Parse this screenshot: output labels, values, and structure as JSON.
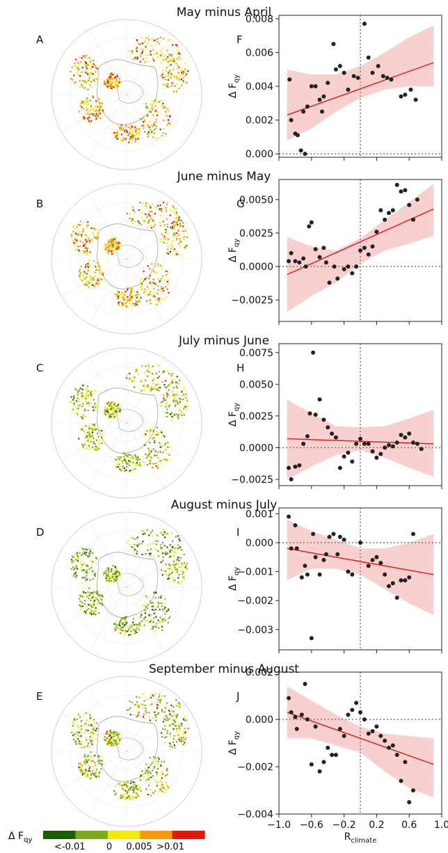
{
  "legend": {
    "label": "Δ F",
    "label_sub": "qy",
    "colors": [
      "#1b5e06",
      "#7aab1c",
      "#f5e80d",
      "#f59a0b",
      "#e3160b"
    ],
    "tick_labels": [
      "<-0.01",
      "0",
      "0.005",
      ">0.01"
    ]
  },
  "chart_data": [
    {
      "type": "scatter",
      "title": "May minus April",
      "map_label": "A",
      "panel_label": "F",
      "ylabel": "Δ F",
      "ylabel_sub": "qy",
      "xlim": [
        -1.0,
        1.0
      ],
      "ylim": [
        -0.0002,
        0.0082
      ],
      "yticks": [
        0.0,
        0.002,
        0.004,
        0.006,
        0.008
      ],
      "ytick_labels": [
        "0.000",
        "0.002",
        "0.004",
        "0.006",
        "0.008"
      ],
      "points": [
        [
          -0.87,
          0.0044
        ],
        [
          -0.85,
          0.002
        ],
        [
          -0.8,
          0.0012
        ],
        [
          -0.77,
          0.0011
        ],
        [
          -0.73,
          0.0002
        ],
        [
          -0.68,
          0.0
        ],
        [
          -0.7,
          0.0025
        ],
        [
          -0.65,
          0.0028
        ],
        [
          -0.6,
          0.004
        ],
        [
          -0.55,
          0.004
        ],
        [
          -0.5,
          0.0032
        ],
        [
          -0.47,
          0.0025
        ],
        [
          -0.45,
          0.0034
        ],
        [
          -0.4,
          0.0042
        ],
        [
          -0.33,
          0.0065
        ],
        [
          -0.3,
          0.005
        ],
        [
          -0.25,
          0.0052
        ],
        [
          -0.2,
          0.0048
        ],
        [
          -0.15,
          0.0038
        ],
        [
          -0.08,
          0.0046
        ],
        [
          -0.03,
          0.0045
        ],
        [
          0.05,
          0.0077
        ],
        [
          0.1,
          0.0057
        ],
        [
          0.15,
          0.0048
        ],
        [
          0.22,
          0.0052
        ],
        [
          0.28,
          0.0046
        ],
        [
          0.33,
          0.0045
        ],
        [
          0.38,
          0.0044
        ],
        [
          0.5,
          0.0034
        ],
        [
          0.55,
          0.0035
        ],
        [
          0.62,
          0.0038
        ],
        [
          0.68,
          0.0032
        ]
      ],
      "fit": {
        "x0": -0.9,
        "y0": 0.0023,
        "x1": 0.9,
        "y1": 0.0054
      },
      "band": {
        "x": [
          -0.9,
          -0.6,
          -0.3,
          0.0,
          0.3,
          0.6,
          0.9
        ],
        "upper": [
          0.005,
          0.0047,
          0.0047,
          0.0052,
          0.006,
          0.0069,
          0.0076
        ],
        "lower": [
          0.0008,
          0.0015,
          0.0025,
          0.0033,
          0.0038,
          0.004,
          0.004
        ]
      }
    },
    {
      "type": "scatter",
      "title": "June minus May",
      "map_label": "B",
      "panel_label": "G",
      "ylabel": "Δ F",
      "ylabel_sub": "qy",
      "xlim": [
        -1.0,
        1.0
      ],
      "ylim": [
        -0.0041,
        0.0065
      ],
      "yticks": [
        -0.0025,
        0.0,
        0.0025,
        0.005
      ],
      "ytick_labels": [
        "−0.0025",
        "0.0000",
        "0.0025",
        "0.0050"
      ],
      "points": [
        [
          -0.88,
          0.0004
        ],
        [
          -0.85,
          0.001
        ],
        [
          -0.8,
          0.0004
        ],
        [
          -0.75,
          0.0003
        ],
        [
          -0.7,
          0.0006
        ],
        [
          -0.67,
          0.0
        ],
        [
          -0.63,
          0.003
        ],
        [
          -0.6,
          0.0033
        ],
        [
          -0.55,
          0.0013
        ],
        [
          -0.5,
          0.0007
        ],
        [
          -0.45,
          0.0014
        ],
        [
          -0.42,
          0.0003
        ],
        [
          -0.38,
          -0.0012
        ],
        [
          -0.32,
          0.0
        ],
        [
          -0.28,
          -0.0009
        ],
        [
          -0.2,
          -0.0002
        ],
        [
          -0.15,
          0.0
        ],
        [
          -0.1,
          -0.0005
        ],
        [
          -0.05,
          0.0
        ],
        [
          0.0,
          0.0012
        ],
        [
          0.05,
          0.0014
        ],
        [
          0.1,
          0.0009
        ],
        [
          0.15,
          0.0015
        ],
        [
          0.2,
          0.0026
        ],
        [
          0.25,
          0.0042
        ],
        [
          0.3,
          0.0035
        ],
        [
          0.35,
          0.004
        ],
        [
          0.4,
          0.0042
        ],
        [
          0.45,
          0.0061
        ],
        [
          0.5,
          0.0056
        ],
        [
          0.55,
          0.0057
        ],
        [
          0.6,
          0.0046
        ],
        [
          0.65,
          0.0035
        ],
        [
          0.7,
          0.005
        ]
      ],
      "fit": {
        "x0": -0.9,
        "y0": -0.0006,
        "x1": 0.9,
        "y1": 0.0043
      },
      "band": {
        "x": [
          -0.9,
          -0.6,
          -0.3,
          0.0,
          0.3,
          0.6,
          0.9
        ],
        "upper": [
          0.0022,
          0.0015,
          0.0012,
          0.0021,
          0.0035,
          0.0048,
          0.0062
        ],
        "lower": [
          -0.0034,
          -0.0022,
          -0.0012,
          0.0002,
          0.0012,
          0.0017,
          0.0023
        ]
      }
    },
    {
      "type": "scatter",
      "title": "July minus June",
      "map_label": "C",
      "panel_label": "H",
      "ylabel": "Δ F",
      "ylabel_sub": "qy",
      "xlim": [
        -1.0,
        1.0
      ],
      "ylim": [
        -0.003,
        0.0082
      ],
      "yticks": [
        -0.0025,
        0.0,
        0.0025,
        0.005,
        0.0075
      ],
      "ytick_labels": [
        "−0.0025",
        "0.0000",
        "0.0025",
        "0.0050",
        "0.0075"
      ],
      "points": [
        [
          -0.88,
          -0.0016
        ],
        [
          -0.85,
          -0.0025
        ],
        [
          -0.8,
          -0.0015
        ],
        [
          -0.75,
          -0.0014
        ],
        [
          -0.7,
          0.0003
        ],
        [
          -0.65,
          0.0009
        ],
        [
          -0.62,
          0.0027
        ],
        [
          -0.58,
          0.0075
        ],
        [
          -0.55,
          0.0026
        ],
        [
          -0.5,
          0.0038
        ],
        [
          -0.45,
          0.0022
        ],
        [
          -0.4,
          0.0016
        ],
        [
          -0.35,
          0.0011
        ],
        [
          -0.3,
          0.0008
        ],
        [
          -0.25,
          -0.0016
        ],
        [
          -0.2,
          -0.0007
        ],
        [
          -0.15,
          -0.0004
        ],
        [
          -0.1,
          -0.0011
        ],
        [
          -0.05,
          0.0003
        ],
        [
          0.0,
          0.0007
        ],
        [
          0.05,
          0.0003
        ],
        [
          0.1,
          0.0003
        ],
        [
          0.15,
          -0.0003
        ],
        [
          0.2,
          -0.0008
        ],
        [
          0.25,
          -0.0005
        ],
        [
          0.3,
          0.0
        ],
        [
          0.35,
          0.0002
        ],
        [
          0.4,
          0.0001
        ],
        [
          0.45,
          0.0004
        ],
        [
          0.5,
          0.001
        ],
        [
          0.55,
          0.0008
        ],
        [
          0.6,
          0.0011
        ],
        [
          0.65,
          0.0004
        ],
        [
          0.7,
          0.0003
        ],
        [
          0.75,
          -0.0001
        ]
      ],
      "fit": {
        "x0": -0.9,
        "y0": 0.0007,
        "x1": 0.9,
        "y1": 0.0003
      },
      "band": {
        "x": [
          -0.9,
          -0.6,
          -0.3,
          0.0,
          0.3,
          0.6,
          0.9
        ],
        "upper": [
          0.0038,
          0.0027,
          0.0017,
          0.0016,
          0.0017,
          0.0023,
          0.003
        ],
        "lower": [
          -0.0025,
          -0.0015,
          -0.0006,
          -0.0002,
          -0.0008,
          -0.0016,
          -0.0023
        ]
      }
    },
    {
      "type": "scatter",
      "title": "August minus July",
      "map_label": "D",
      "panel_label": "I",
      "ylabel": "Δ F",
      "ylabel_sub": "qy",
      "xlim": [
        -1.0,
        1.0
      ],
      "ylim": [
        -0.0037,
        0.0012
      ],
      "yticks": [
        -0.003,
        -0.002,
        -0.001,
        0.0,
        0.001
      ],
      "ytick_labels": [
        "−0.003",
        "−0.002",
        "−0.001",
        "0.000",
        "0.001"
      ],
      "points": [
        [
          -0.88,
          0.0009
        ],
        [
          -0.85,
          -0.0002
        ],
        [
          -0.8,
          0.0006
        ],
        [
          -0.78,
          -0.0002
        ],
        [
          -0.72,
          -0.0012
        ],
        [
          -0.68,
          -0.0008
        ],
        [
          -0.65,
          -0.0011
        ],
        [
          -0.6,
          -0.0033
        ],
        [
          -0.58,
          0.0003
        ],
        [
          -0.55,
          -0.0005
        ],
        [
          -0.5,
          -0.0011
        ],
        [
          -0.45,
          -0.0006
        ],
        [
          -0.42,
          -0.0004
        ],
        [
          -0.38,
          0.0002
        ],
        [
          -0.33,
          0.0003
        ],
        [
          -0.28,
          -0.0004
        ],
        [
          -0.25,
          0.0002
        ],
        [
          -0.2,
          0.0001
        ],
        [
          -0.15,
          -0.001
        ],
        [
          -0.1,
          -0.0011
        ],
        [
          0.0,
          0.0
        ],
        [
          0.1,
          -0.0008
        ],
        [
          0.15,
          -0.0006
        ],
        [
          0.2,
          -0.0005
        ],
        [
          0.25,
          -0.0007
        ],
        [
          0.3,
          -0.0011
        ],
        [
          0.35,
          -0.0015
        ],
        [
          0.4,
          -0.0014
        ],
        [
          0.45,
          -0.0019
        ],
        [
          0.5,
          -0.0013
        ],
        [
          0.55,
          -0.0013
        ],
        [
          0.6,
          -0.0012
        ],
        [
          0.65,
          0.0003
        ]
      ],
      "fit": {
        "x0": -0.9,
        "y0": -0.0002,
        "x1": 0.9,
        "y1": -0.0011
      },
      "band": {
        "x": [
          -0.9,
          -0.6,
          -0.3,
          0.0,
          0.3,
          0.6,
          0.9
        ],
        "upper": [
          0.0008,
          0.0004,
          0.0001,
          -0.0002,
          -0.0002,
          0.0,
          0.0003
        ],
        "lower": [
          -0.0013,
          -0.0009,
          -0.0009,
          -0.0011,
          -0.0016,
          -0.0021,
          -0.0025
        ]
      }
    },
    {
      "type": "scatter",
      "title": "September minus August",
      "map_label": "E",
      "panel_label": "J",
      "ylabel": "Δ F",
      "ylabel_sub": "qy",
      "xlabel": "R",
      "xlabel_sub": "climate",
      "xlim": [
        -1.0,
        1.0
      ],
      "ylim": [
        -0.004,
        0.002
      ],
      "yticks": [
        -0.004,
        -0.002,
        0.0,
        0.002
      ],
      "ytick_labels": [
        "−0.004",
        "−0.002",
        "0.000",
        "0.002"
      ],
      "xticks": [
        -1.0,
        -0.6,
        -0.2,
        0.2,
        0.6,
        1.0
      ],
      "xtick_labels": [
        "−1.0",
        "−0.6",
        "−0.2",
        "0.2",
        "0.6",
        "1.0"
      ],
      "points": [
        [
          -0.88,
          0.0009
        ],
        [
          -0.85,
          0.0003
        ],
        [
          -0.8,
          0.0001
        ],
        [
          -0.78,
          -0.0004
        ],
        [
          -0.72,
          0.0002
        ],
        [
          -0.68,
          0.0015
        ],
        [
          -0.65,
          0.0
        ],
        [
          -0.6,
          -0.0019
        ],
        [
          -0.55,
          -0.0003
        ],
        [
          -0.5,
          -0.0022
        ],
        [
          -0.45,
          -0.0018
        ],
        [
          -0.4,
          -0.0012
        ],
        [
          -0.35,
          -0.0015
        ],
        [
          -0.3,
          -0.0015
        ],
        [
          -0.25,
          -0.0004
        ],
        [
          -0.2,
          -0.0007
        ],
        [
          -0.15,
          0.0002
        ],
        [
          -0.1,
          0.0004
        ],
        [
          -0.05,
          0.0007
        ],
        [
          0.0,
          0.0003
        ],
        [
          0.05,
          0.0
        ],
        [
          0.1,
          -0.0006
        ],
        [
          0.15,
          -0.0005
        ],
        [
          0.2,
          -0.0003
        ],
        [
          0.25,
          -0.0007
        ],
        [
          0.3,
          -0.0009
        ],
        [
          0.35,
          -0.0012
        ],
        [
          0.4,
          -0.0011
        ],
        [
          0.45,
          -0.0015
        ],
        [
          0.5,
          -0.0026
        ],
        [
          0.55,
          -0.0018
        ],
        [
          0.6,
          -0.0035
        ],
        [
          0.65,
          -0.003
        ]
      ],
      "fit": {
        "x0": -0.9,
        "y0": 0.0003,
        "x1": 0.9,
        "y1": -0.0019
      },
      "band": {
        "x": [
          -0.9,
          -0.6,
          -0.3,
          0.0,
          0.3,
          0.6,
          0.9
        ],
        "upper": [
          0.0014,
          0.0008,
          0.0002,
          -0.0003,
          -0.0006,
          -0.0007,
          -0.0008
        ],
        "lower": [
          -0.0008,
          -0.0008,
          -0.0011,
          -0.0014,
          -0.0022,
          -0.0029,
          -0.0033
        ]
      }
    }
  ]
}
